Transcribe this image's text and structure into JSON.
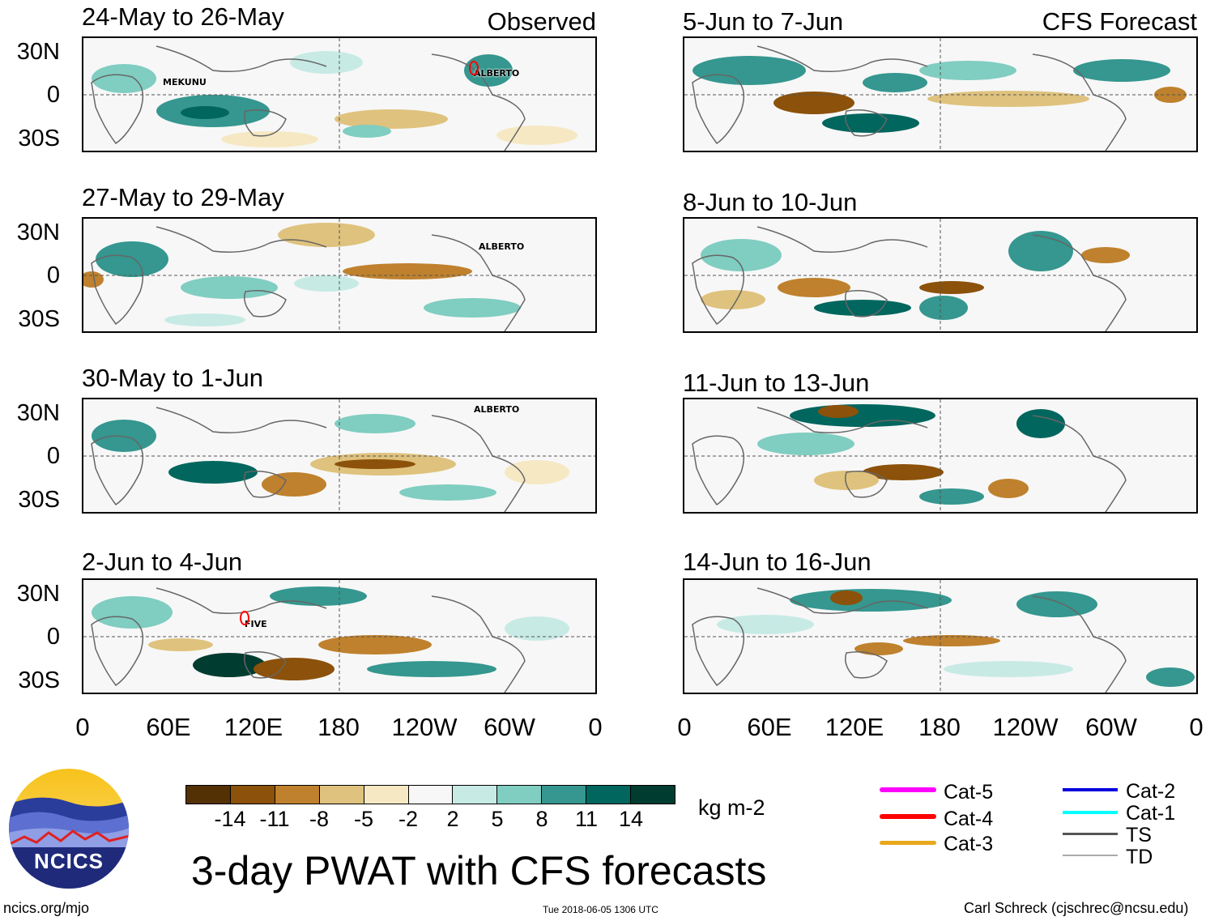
{
  "header": {
    "observed_label": "Observed",
    "forecast_label": "CFS Forecast"
  },
  "observed_panels": [
    {
      "title": "24-May to 26-May",
      "storms": [
        "MEKUNU",
        "ALBERTO"
      ]
    },
    {
      "title": "27-May to 29-May",
      "storms": [
        "ALBERTO"
      ]
    },
    {
      "title": "30-May to 1-Jun",
      "storms": [
        "ALBERTO"
      ]
    },
    {
      "title": "2-Jun to 4-Jun",
      "storms": [
        "FIVE"
      ]
    }
  ],
  "forecast_panels": [
    {
      "title": "5-Jun to 7-Jun"
    },
    {
      "title": "8-Jun to 10-Jun"
    },
    {
      "title": "11-Jun to 13-Jun"
    },
    {
      "title": "14-Jun to 16-Jun"
    }
  ],
  "axes": {
    "lat_labels": [
      "30N",
      "0",
      "30S"
    ],
    "lon_labels": [
      "0",
      "60E",
      "120E",
      "180",
      "120W",
      "60W",
      "0"
    ]
  },
  "colorbar": {
    "unit": "kg m-2",
    "ticks": [
      "-14",
      "-11",
      "-8",
      "-5",
      "-2",
      "2",
      "5",
      "8",
      "11",
      "14"
    ],
    "colors": [
      "#543005",
      "#8c510a",
      "#bf812d",
      "#dfc27d",
      "#f6e8c3",
      "#f7f7f7",
      "#c7eae5",
      "#80cdc1",
      "#35978f",
      "#01665e",
      "#003c30"
    ]
  },
  "legend": {
    "items_left": [
      {
        "label": "Cat-5",
        "color": "#ff00ff"
      },
      {
        "label": "Cat-4",
        "color": "#ff0000"
      },
      {
        "label": "Cat-3",
        "color": "#e8a81c"
      }
    ],
    "items_right": [
      {
        "label": "Cat-2",
        "color": "#0000dd"
      },
      {
        "label": "Cat-1",
        "color": "#00ffff"
      },
      {
        "label": "TS",
        "color": "#555555"
      },
      {
        "label": "TD",
        "color": "#aaaaaa"
      }
    ]
  },
  "logo": {
    "text": "NCICS"
  },
  "main_title": "3-day PWAT with CFS forecasts",
  "footer": {
    "left": "ncics.org/mjo",
    "center": "Tue 2018-06-05 1306 UTC",
    "right": "Carl Schreck (cjschrec@ncsu.edu)"
  }
}
